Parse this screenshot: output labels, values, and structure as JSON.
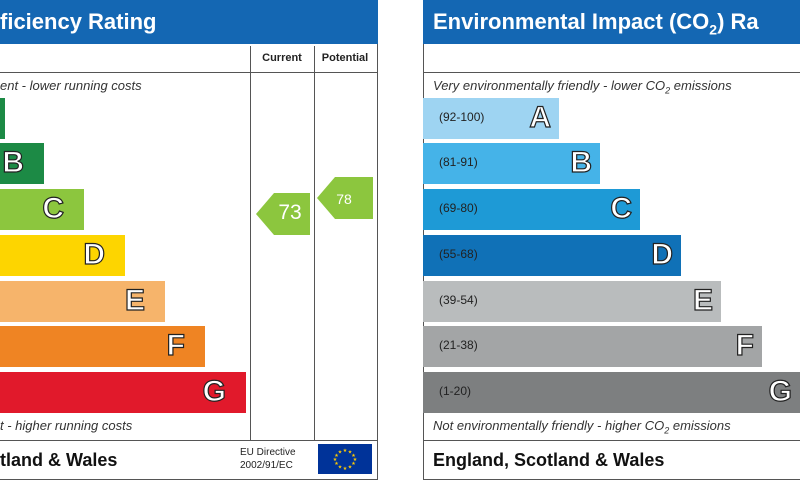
{
  "energy": {
    "title": "ficiency Rating",
    "col_current": "Current",
    "col_potential": "Potential",
    "top_note": "ent - lower running costs",
    "bottom_note": "t - higher running costs",
    "footer": "tland & Wales",
    "eu_line1": "EU Directive",
    "eu_line2": "2002/91/EC",
    "current_value": "73",
    "potential_value": "78",
    "bands": [
      {
        "letter": "B",
        "color": "#1c8a45"
      },
      {
        "letter": "C",
        "color": "#8cc63e"
      },
      {
        "letter": "D",
        "color": "#fdd500"
      },
      {
        "letter": "E",
        "color": "#f6b46b"
      },
      {
        "letter": "F",
        "color": "#ef8423"
      },
      {
        "letter": "G",
        "color": "#e1192b"
      }
    ],
    "top_band_color": "#1c8a45",
    "arrow_color": "#8cc63e"
  },
  "env": {
    "title": "Environmental Impact (CO",
    "title_sub": "2",
    "title_tail": ") Ra",
    "top_note": "Very environmentally friendly - lower CO",
    "top_note_tail": " emissions",
    "bottom_note": "Not environmentally friendly - higher CO",
    "bottom_note_tail": " emissions",
    "sub2": "2",
    "footer": "England, Scotland & Wales",
    "bands": [
      {
        "letter": "A",
        "range": "(92-100)",
        "color": "#9ed4f2"
      },
      {
        "letter": "B",
        "range": "(81-91)",
        "color": "#45b3e8"
      },
      {
        "letter": "C",
        "range": "(69-80)",
        "color": "#1e9ad6"
      },
      {
        "letter": "D",
        "range": "(55-68)",
        "color": "#1071b7"
      },
      {
        "letter": "E",
        "range": "(39-54)",
        "color": "#b9bcbd"
      },
      {
        "letter": "F",
        "range": "(21-38)",
        "color": "#a3a5a6"
      },
      {
        "letter": "G",
        "range": "(1-20)",
        "color": "#7d7f80"
      }
    ]
  }
}
